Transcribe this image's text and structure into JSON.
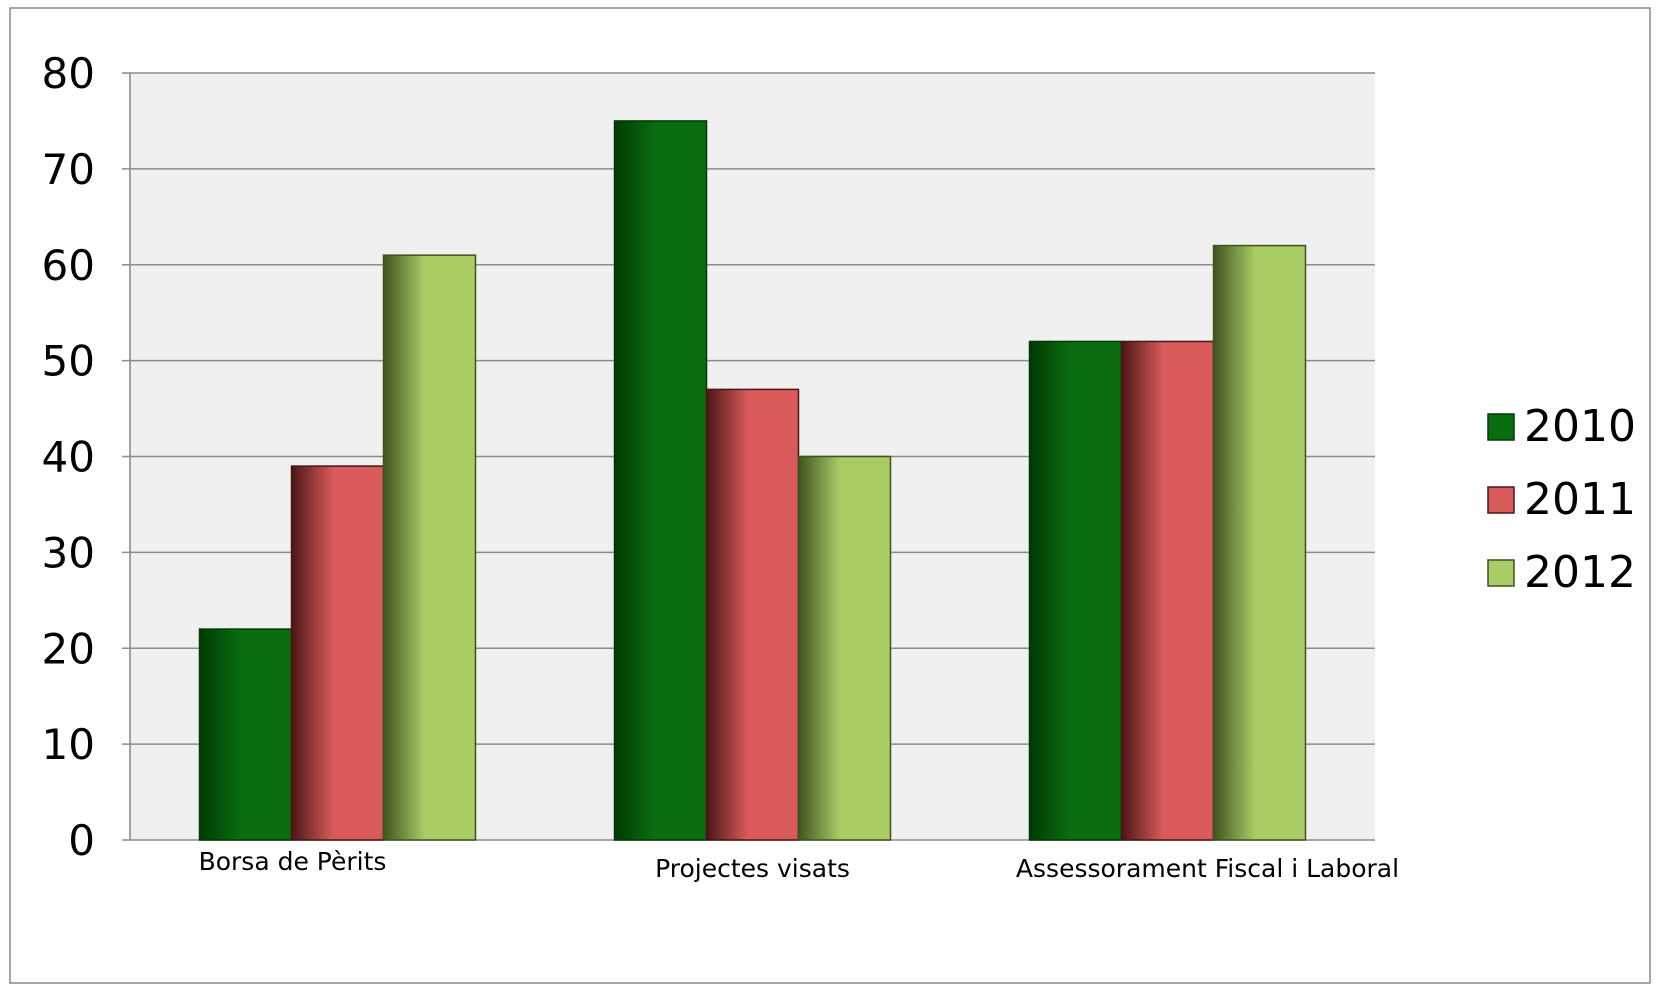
{
  "chart_data": {
    "type": "bar",
    "title": "",
    "xlabel": "",
    "ylabel": "",
    "categories": [
      "Borsa de Pèrits",
      "Projectes visats",
      "Assessorament Fiscal i Laboral"
    ],
    "series": [
      {
        "name": "2010",
        "values": [
          22,
          75,
          52
        ],
        "color": "#0a6e10",
        "dark": "#003a04"
      },
      {
        "name": "2011",
        "values": [
          39,
          47,
          52
        ],
        "color": "#d85a5a",
        "dark": "#4a1616"
      },
      {
        "name": "2012",
        "values": [
          61,
          40,
          62
        ],
        "color": "#a9cc65",
        "dark": "#3e5420"
      }
    ],
    "ylim": [
      0,
      80
    ],
    "yticks": [
      0,
      10,
      20,
      30,
      40,
      50,
      60,
      70,
      80
    ],
    "grid": true,
    "legend": "right",
    "plot_background": "#f0f0f0"
  }
}
